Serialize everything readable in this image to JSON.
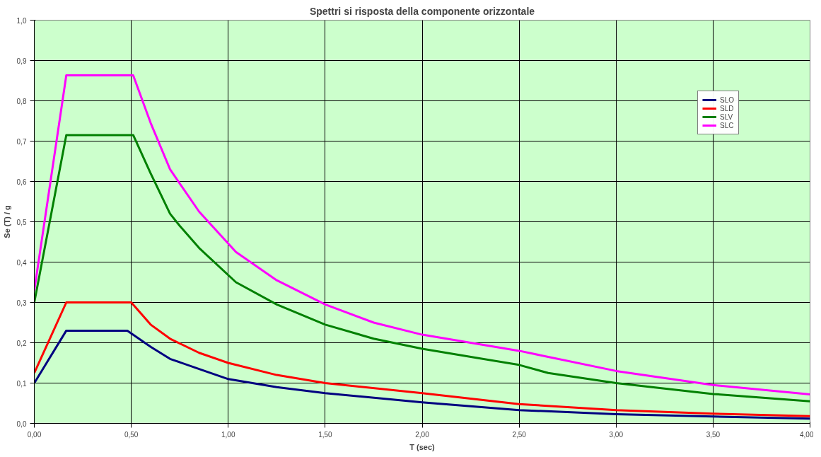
{
  "chart_data": {
    "type": "line",
    "title": "Spettri si risposta della componente orizzontale",
    "xlabel": "T (sec)",
    "ylabel": "Se (T) / g",
    "xlim": [
      0,
      4
    ],
    "ylim": [
      0,
      1
    ],
    "xticks": [
      {
        "value": 0,
        "label": "0,00"
      },
      {
        "value": 0.5,
        "label": "0,50"
      },
      {
        "value": 1,
        "label": "1,00"
      },
      {
        "value": 1.5,
        "label": "1,50"
      },
      {
        "value": 2,
        "label": "2,00"
      },
      {
        "value": 2.5,
        "label": "2,50"
      },
      {
        "value": 3,
        "label": "3,00"
      },
      {
        "value": 3.5,
        "label": "3,50"
      },
      {
        "value": 4,
        "label": "4,00"
      }
    ],
    "yticks": [
      {
        "value": 0,
        "label": "0,0"
      },
      {
        "value": 0.1,
        "label": "0,1"
      },
      {
        "value": 0.2,
        "label": "0,2"
      },
      {
        "value": 0.3,
        "label": "0,3"
      },
      {
        "value": 0.4,
        "label": "0,4"
      },
      {
        "value": 0.5,
        "label": "0,5"
      },
      {
        "value": 0.6,
        "label": "0,6"
      },
      {
        "value": 0.7,
        "label": "0,7"
      },
      {
        "value": 0.8,
        "label": "0,8"
      },
      {
        "value": 0.9,
        "label": "0,9"
      },
      {
        "value": 1,
        "label": "1,0"
      }
    ],
    "grid": true,
    "legend": "top right",
    "marker": "none",
    "line_style": "solid",
    "series": [
      {
        "name": "SLO",
        "color": "#000080",
        "x": [
          0,
          0.165,
          0.48,
          0.6,
          0.7,
          0.85,
          1.0,
          1.25,
          1.5,
          2.0,
          2.5,
          3.0,
          3.5,
          4.0
        ],
        "values": [
          0.1,
          0.23,
          0.23,
          0.19,
          0.16,
          0.135,
          0.11,
          0.09,
          0.075,
          0.052,
          0.033,
          0.023,
          0.017,
          0.012
        ]
      },
      {
        "name": "SLD",
        "color": "#ff0000",
        "x": [
          0,
          0.165,
          0.5,
          0.6,
          0.7,
          0.85,
          1.0,
          1.25,
          1.5,
          2.0,
          2.5,
          3.0,
          3.5,
          4.0
        ],
        "values": [
          0.125,
          0.3,
          0.3,
          0.245,
          0.21,
          0.175,
          0.15,
          0.12,
          0.1,
          0.075,
          0.048,
          0.033,
          0.024,
          0.018
        ]
      },
      {
        "name": "SLV",
        "color": "#008000",
        "x": [
          0,
          0.165,
          0.51,
          0.6,
          0.7,
          0.75,
          0.85,
          1.04,
          1.25,
          1.5,
          1.75,
          2.0,
          2.5,
          2.65,
          3.0,
          3.5,
          4.0
        ],
        "values": [
          0.3,
          0.715,
          0.715,
          0.62,
          0.52,
          0.49,
          0.435,
          0.35,
          0.295,
          0.245,
          0.21,
          0.185,
          0.145,
          0.125,
          0.1,
          0.073,
          0.055
        ]
      },
      {
        "name": "SLC",
        "color": "#ff00ff",
        "x": [
          0,
          0.165,
          0.51,
          0.6,
          0.7,
          0.85,
          1.04,
          1.25,
          1.5,
          1.75,
          2.0,
          2.5,
          2.65,
          3.0,
          3.5,
          4.0
        ],
        "values": [
          0.33,
          0.863,
          0.863,
          0.745,
          0.63,
          0.525,
          0.425,
          0.355,
          0.295,
          0.25,
          0.22,
          0.18,
          0.165,
          0.13,
          0.095,
          0.072
        ]
      }
    ]
  }
}
